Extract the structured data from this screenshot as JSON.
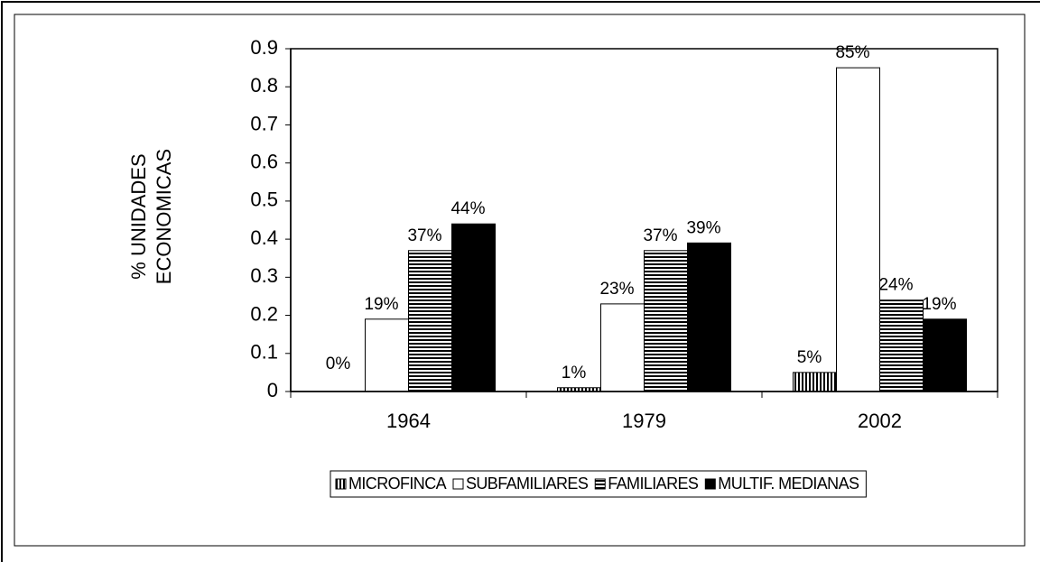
{
  "chart_data": {
    "type": "bar",
    "y_label": [
      "% UNIDADES",
      "ECONOMICAS"
    ],
    "categories": [
      "1964",
      "1979",
      "2002"
    ],
    "series": [
      {
        "name": "MICROFINCA",
        "color": "#000000",
        "pattern": "vertical-stripes",
        "values": [
          0,
          0.01,
          0.05
        ],
        "value_labels": [
          "0%",
          "1%",
          "5%"
        ]
      },
      {
        "name": "SUBFAMILIARES",
        "color": "#ffffff",
        "pattern": "solid",
        "values": [
          0.19,
          0.23,
          0.85
        ],
        "value_labels": [
          "19%",
          "23%",
          "85%"
        ]
      },
      {
        "name": "FAMILIARES",
        "color": "#000000",
        "pattern": "horizontal-stripes",
        "values": [
          0.37,
          0.37,
          0.24
        ],
        "value_labels": [
          "37%",
          "37%",
          "24%"
        ]
      },
      {
        "name": "MULTIF. MEDIANAS",
        "color": "#000000",
        "pattern": "solid",
        "values": [
          0.44,
          0.39,
          0.19
        ],
        "value_labels": [
          "44%",
          "39%",
          "19%"
        ]
      }
    ],
    "ylim": [
      0,
      0.9
    ],
    "yticks": [
      0,
      0.1,
      0.2,
      0.3,
      0.4,
      0.5,
      0.6,
      0.7,
      0.8,
      0.9
    ],
    "legend": "bottom",
    "grid": false
  }
}
